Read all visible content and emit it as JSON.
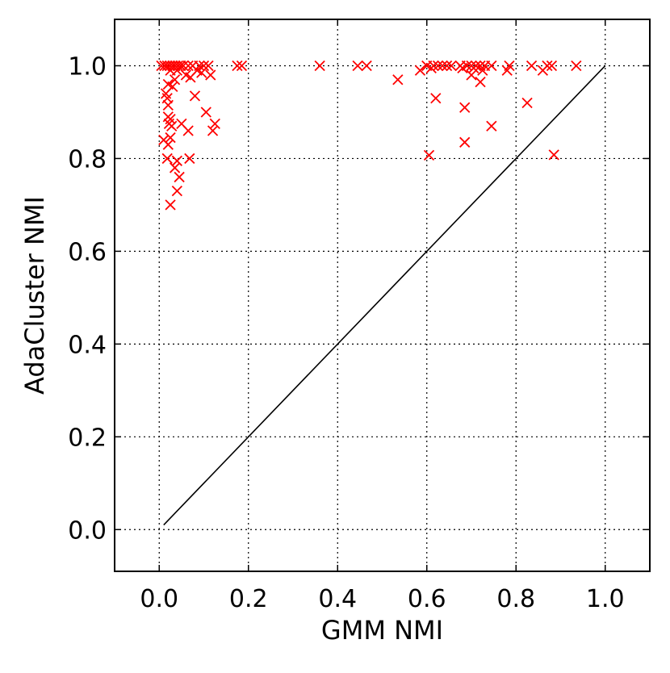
{
  "chart_data": {
    "type": "scatter",
    "title": "",
    "xlabel": "GMM NMI",
    "ylabel": "AdaCluster NMI",
    "xlim": [
      -0.1,
      1.1
    ],
    "ylim": [
      -0.09,
      1.1
    ],
    "xticks": [
      "0.0",
      "0.2",
      "0.4",
      "0.6",
      "0.8",
      "1.0"
    ],
    "yticks": [
      "0.0",
      "0.2",
      "0.4",
      "0.6",
      "0.8",
      "1.0"
    ],
    "grid": true,
    "marker": "x",
    "marker_color": "#ff0000",
    "reference_line": {
      "x": [
        0.01,
        1.0
      ],
      "y": [
        0.01,
        1.0
      ],
      "color": "#000000"
    },
    "points": [
      {
        "x": 0.005,
        "y": 1.0
      },
      {
        "x": 0.012,
        "y": 1.0
      },
      {
        "x": 0.018,
        "y": 1.0
      },
      {
        "x": 0.024,
        "y": 1.0
      },
      {
        "x": 0.03,
        "y": 1.0
      },
      {
        "x": 0.036,
        "y": 1.0
      },
      {
        "x": 0.042,
        "y": 1.0
      },
      {
        "x": 0.048,
        "y": 1.0
      },
      {
        "x": 0.054,
        "y": 1.0
      },
      {
        "x": 0.065,
        "y": 1.0
      },
      {
        "x": 0.075,
        "y": 1.0
      },
      {
        "x": 0.09,
        "y": 1.0
      },
      {
        "x": 0.1,
        "y": 1.0
      },
      {
        "x": 0.11,
        "y": 1.0
      },
      {
        "x": 0.175,
        "y": 1.0
      },
      {
        "x": 0.185,
        "y": 1.0
      },
      {
        "x": 0.36,
        "y": 1.0
      },
      {
        "x": 0.445,
        "y": 1.0
      },
      {
        "x": 0.465,
        "y": 1.0
      },
      {
        "x": 0.6,
        "y": 1.0
      },
      {
        "x": 0.615,
        "y": 1.0
      },
      {
        "x": 0.625,
        "y": 1.0
      },
      {
        "x": 0.635,
        "y": 1.0
      },
      {
        "x": 0.645,
        "y": 1.0
      },
      {
        "x": 0.655,
        "y": 1.0
      },
      {
        "x": 0.675,
        "y": 1.0
      },
      {
        "x": 0.69,
        "y": 1.0
      },
      {
        "x": 0.7,
        "y": 1.0
      },
      {
        "x": 0.71,
        "y": 1.0
      },
      {
        "x": 0.72,
        "y": 1.0
      },
      {
        "x": 0.73,
        "y": 1.0
      },
      {
        "x": 0.745,
        "y": 1.0
      },
      {
        "x": 0.785,
        "y": 1.0
      },
      {
        "x": 0.835,
        "y": 1.0
      },
      {
        "x": 0.87,
        "y": 1.0
      },
      {
        "x": 0.88,
        "y": 1.0
      },
      {
        "x": 0.935,
        "y": 1.0
      },
      {
        "x": 0.025,
        "y": 0.99
      },
      {
        "x": 0.04,
        "y": 0.99
      },
      {
        "x": 0.06,
        "y": 0.98
      },
      {
        "x": 0.07,
        "y": 0.975
      },
      {
        "x": 0.085,
        "y": 0.99
      },
      {
        "x": 0.095,
        "y": 0.985
      },
      {
        "x": 0.115,
        "y": 0.98
      },
      {
        "x": 0.035,
        "y": 0.97
      },
      {
        "x": 0.02,
        "y": 0.96
      },
      {
        "x": 0.015,
        "y": 0.94
      },
      {
        "x": 0.018,
        "y": 0.93
      },
      {
        "x": 0.03,
        "y": 0.955
      },
      {
        "x": 0.02,
        "y": 0.915
      },
      {
        "x": 0.08,
        "y": 0.935
      },
      {
        "x": 0.105,
        "y": 0.9
      },
      {
        "x": 0.02,
        "y": 0.89
      },
      {
        "x": 0.025,
        "y": 0.885
      },
      {
        "x": 0.022,
        "y": 0.875
      },
      {
        "x": 0.028,
        "y": 0.87
      },
      {
        "x": 0.05,
        "y": 0.875
      },
      {
        "x": 0.065,
        "y": 0.86
      },
      {
        "x": 0.12,
        "y": 0.86
      },
      {
        "x": 0.125,
        "y": 0.875
      },
      {
        "x": 0.01,
        "y": 0.84
      },
      {
        "x": 0.025,
        "y": 0.845
      },
      {
        "x": 0.02,
        "y": 0.83
      },
      {
        "x": 0.018,
        "y": 0.8
      },
      {
        "x": 0.04,
        "y": 0.795
      },
      {
        "x": 0.068,
        "y": 0.8
      },
      {
        "x": 0.035,
        "y": 0.78
      },
      {
        "x": 0.045,
        "y": 0.76
      },
      {
        "x": 0.04,
        "y": 0.73
      },
      {
        "x": 0.025,
        "y": 0.7
      },
      {
        "x": 0.535,
        "y": 0.97
      },
      {
        "x": 0.585,
        "y": 0.99
      },
      {
        "x": 0.61,
        "y": 0.995
      },
      {
        "x": 0.68,
        "y": 0.995
      },
      {
        "x": 0.7,
        "y": 0.98
      },
      {
        "x": 0.72,
        "y": 0.965
      },
      {
        "x": 0.725,
        "y": 0.99
      },
      {
        "x": 0.705,
        "y": 0.995
      },
      {
        "x": 0.78,
        "y": 0.99
      },
      {
        "x": 0.86,
        "y": 0.99
      },
      {
        "x": 0.62,
        "y": 0.93
      },
      {
        "x": 0.825,
        "y": 0.92
      },
      {
        "x": 0.685,
        "y": 0.91
      },
      {
        "x": 0.745,
        "y": 0.87
      },
      {
        "x": 0.685,
        "y": 0.835
      },
      {
        "x": 0.605,
        "y": 0.807
      },
      {
        "x": 0.885,
        "y": 0.808
      }
    ]
  }
}
